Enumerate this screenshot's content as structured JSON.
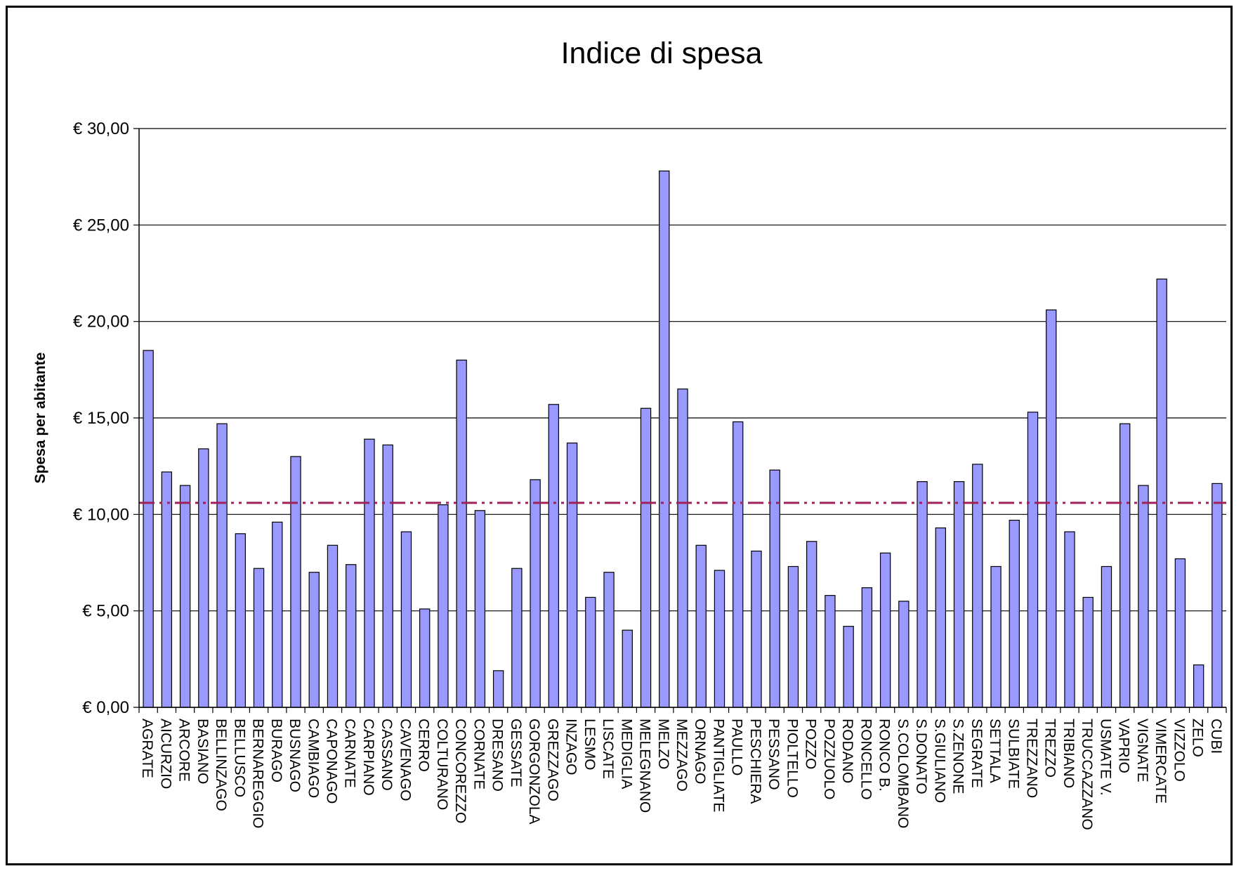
{
  "chart_data": {
    "type": "bar",
    "title": "Indice di spesa",
    "xlabel": "",
    "ylabel": "Spesa per abitante",
    "ylim": [
      0,
      30
    ],
    "yticks": [
      0,
      5,
      10,
      15,
      20,
      25,
      30
    ],
    "ytick_labels": [
      "€ 0,00",
      "€ 5,00",
      "€ 10,00",
      "€ 15,00",
      "€ 20,00",
      "€ 25,00",
      "€ 30,00"
    ],
    "grid": true,
    "bar_color": "#9999ff",
    "reference_line": {
      "value": 10.6,
      "color": "#a0205a",
      "style": "dash-dot-dot"
    },
    "categories": [
      "AGRATE",
      "AICURZIO",
      "ARCORE",
      "BASIANO",
      "BELLINZAGO",
      "BELLUSCO",
      "BERNAREGGIO",
      "BURAGO",
      "BUSNAGO",
      "CAMBIAGO",
      "CAPONAGO",
      "CARNATE",
      "CARPIANO",
      "CASSANO",
      "CAVENAGO",
      "CERRO",
      "COLTURANO",
      "CONCOREZZO",
      "CORNATE",
      "DRESANO",
      "GESSATE",
      "GORGONZOLA",
      "GREZZAGO",
      "INZAGO",
      "LESMO",
      "LISCATE",
      "MEDIGLIA",
      "MELEGNANO",
      "MELZO",
      "MEZZAGO",
      "ORNAGO",
      "PANTIGLIATE",
      "PAULLO",
      "PESCHIERA",
      "PESSANO",
      "PIOLTELLO",
      "POZZO",
      "POZZUOLO",
      "RODANO",
      "RONCELLO",
      "RONCO B.",
      "S.COLOMBANO",
      "S.DONATO",
      "S.GIULIANO",
      "S.ZENONE",
      "SEGRATE",
      "SETTALA",
      "SULBIATE",
      "TREZZANO",
      "TREZZO",
      "TRIBIANO",
      "TRUCCAZZANO",
      "USMATE V.",
      "VAPRIO",
      "VIGNATE",
      "VIMERCATE",
      "VIZZOLO",
      "ZELO",
      "CUBI"
    ],
    "values": [
      18.5,
      12.2,
      11.5,
      13.4,
      14.7,
      9.0,
      7.2,
      9.6,
      13.0,
      7.0,
      8.4,
      7.4,
      13.9,
      13.6,
      9.1,
      5.1,
      10.5,
      18.0,
      10.2,
      1.9,
      7.2,
      11.8,
      15.7,
      13.7,
      5.7,
      7.0,
      4.0,
      15.5,
      27.8,
      16.5,
      8.4,
      7.1,
      14.8,
      8.1,
      12.3,
      7.3,
      8.6,
      5.8,
      4.2,
      6.2,
      8.0,
      5.5,
      11.7,
      9.3,
      11.7,
      12.6,
      7.3,
      9.7,
      15.3,
      20.6,
      9.1,
      5.7,
      7.3,
      14.7,
      11.5,
      22.2,
      7.7,
      2.2,
      11.6
    ]
  }
}
